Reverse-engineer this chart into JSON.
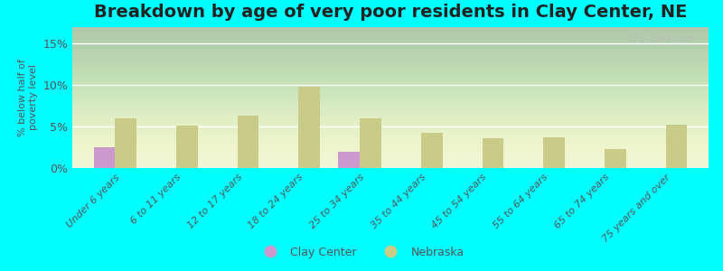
{
  "title": "Breakdown by age of very poor residents in Clay Center, NE",
  "ylabel": "% below half of\npoverty level",
  "background_color": "#00FFFF",
  "plot_facecolor": "#eef3d5",
  "categories": [
    "Under 6 years",
    "6 to 11 years",
    "12 to 17 years",
    "18 to 24 years",
    "25 to 34 years",
    "35 to 44 years",
    "45 to 54 years",
    "55 to 64 years",
    "65 to 74 years",
    "75 years and over"
  ],
  "clay_center": [
    2.5,
    0,
    0,
    0,
    2.0,
    0,
    0,
    0,
    0,
    0
  ],
  "nebraska": [
    6.0,
    5.1,
    6.3,
    9.8,
    6.0,
    4.3,
    3.6,
    3.7,
    2.3,
    5.2
  ],
  "clay_color": "#cc99cc",
  "nebraska_color": "#c8cc88",
  "ylim": [
    0,
    17
  ],
  "yticks": [
    0,
    5,
    10,
    15
  ],
  "ytick_labels": [
    "0%",
    "5%",
    "10%",
    "15%"
  ],
  "bar_width": 0.35,
  "title_fontsize": 14,
  "watermark": "City-Data.com"
}
